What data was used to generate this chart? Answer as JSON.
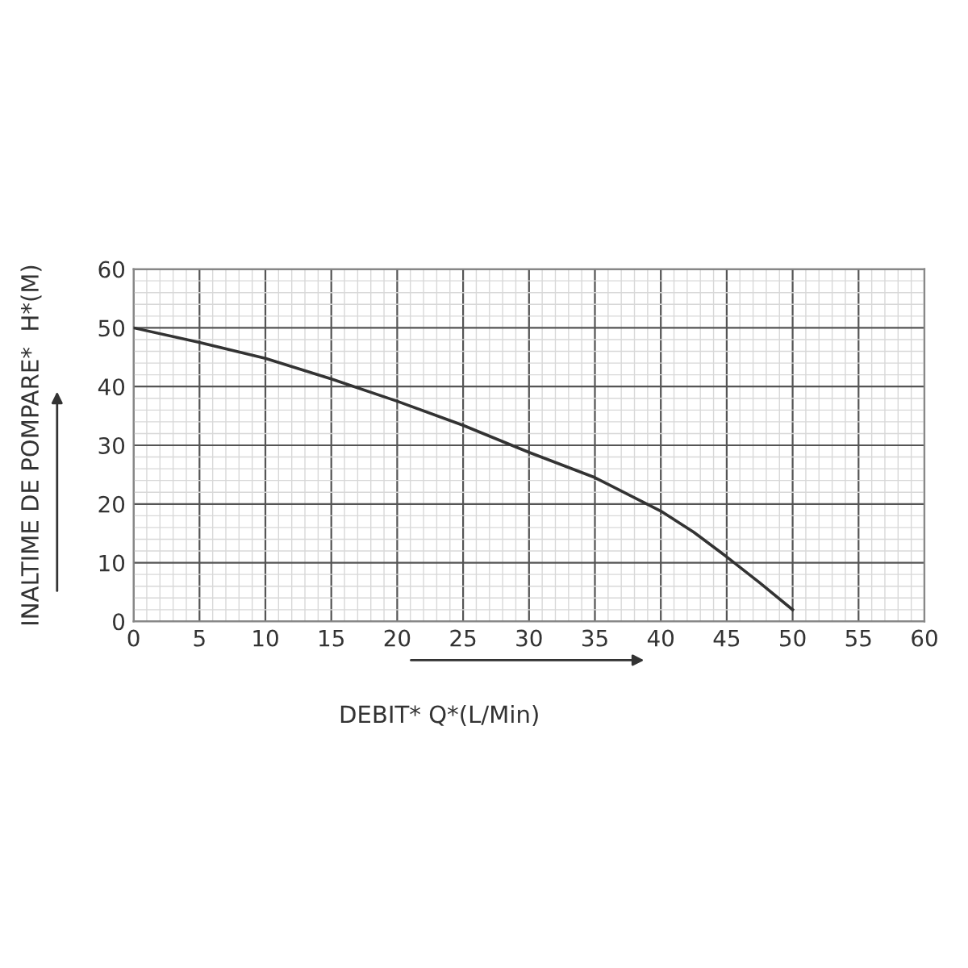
{
  "chart_data": {
    "type": "line",
    "xlabel": "DEBIT* Q*(L/Min)",
    "ylabel": "INALTIME DE POMPARE*  H*(M)",
    "x": [
      0,
      5,
      10,
      15,
      20,
      25,
      30,
      35,
      40,
      42.5,
      45,
      47.5,
      50
    ],
    "series": [
      {
        "color": "#333333",
        "values": [
          50,
          47.5,
          44.8,
          41.3,
          37.5,
          33.4,
          28.8,
          24.5,
          18.8,
          15.2,
          11,
          6.6,
          2
        ]
      }
    ],
    "xlim": [
      0,
      60
    ],
    "xticks": [
      0,
      5,
      10,
      15,
      20,
      25,
      30,
      35,
      40,
      45,
      50,
      55,
      60
    ],
    "ylim": [
      0,
      60
    ],
    "yticks": [
      0,
      10,
      20,
      30,
      40,
      50,
      60
    ],
    "grid": true,
    "marker": "none",
    "line_style": "solid",
    "legend": false
  }
}
